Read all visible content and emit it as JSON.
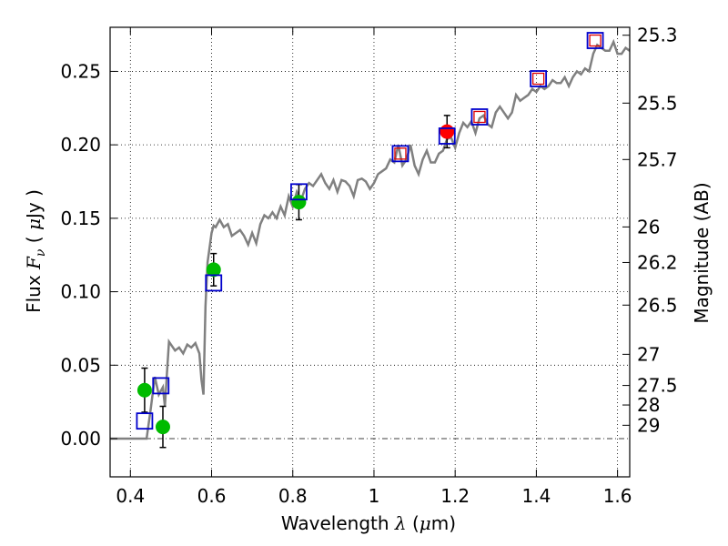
{
  "chart_data": {
    "type": "scatter",
    "xlabel": "Wavelength",
    "xlabel_symbol": "λ",
    "xlabel_unit_open": "(",
    "xlabel_unit_mu": "μ",
    "xlabel_unit_rest": "m)",
    "ylabel_prefix": "Flux",
    "ylabel_symbol": "F",
    "ylabel_sub": "ν",
    "ylabel_unit_open": "(",
    "ylabel_unit_mu": "μ",
    "ylabel_unit_rest": "Jy )",
    "y2label": "Magnitude (AB)",
    "xlim": [
      0.35,
      1.63
    ],
    "ylim": [
      -0.026,
      0.28
    ],
    "grid": true,
    "x_ticks": [
      0.4,
      0.6,
      0.8,
      1.0,
      1.2,
      1.4,
      1.6
    ],
    "x_tick_labels": [
      "0.4",
      "0.6",
      "0.8",
      "1",
      "1.2",
      "1.4",
      "1.6"
    ],
    "y_ticks": [
      0.0,
      0.05,
      0.1,
      0.15,
      0.2,
      0.25
    ],
    "y_tick_labels": [
      "0.00",
      "0.05",
      "0.10",
      "0.15",
      "0.20",
      "0.25"
    ],
    "mag_ticks": [
      {
        "label": "25.3",
        "flux": 0.2746
      },
      {
        "label": "25.5",
        "flux": 0.2284
      },
      {
        "label": "25.7",
        "flux": 0.19
      },
      {
        "label": "26",
        "flux": 0.1441
      },
      {
        "label": "26.2",
        "flux": 0.1199
      },
      {
        "label": "26.5",
        "flux": 0.0909
      },
      {
        "label": "27",
        "flux": 0.0574
      },
      {
        "label": "27.5",
        "flux": 0.0362
      },
      {
        "label": "28",
        "flux": 0.0229
      },
      {
        "label": "29",
        "flux": 0.0091
      }
    ],
    "model_spectrum": {
      "name": "SED model",
      "color": "#808080",
      "x": [
        0.35,
        0.4,
        0.42,
        0.43,
        0.44,
        0.45,
        0.46,
        0.47,
        0.48,
        0.485,
        0.49,
        0.495,
        0.5,
        0.51,
        0.52,
        0.53,
        0.54,
        0.55,
        0.56,
        0.57,
        0.575,
        0.58,
        0.585,
        0.59,
        0.595,
        0.6,
        0.605,
        0.61,
        0.62,
        0.63,
        0.64,
        0.65,
        0.66,
        0.67,
        0.68,
        0.69,
        0.7,
        0.71,
        0.72,
        0.73,
        0.74,
        0.75,
        0.76,
        0.77,
        0.78,
        0.79,
        0.8,
        0.81,
        0.82,
        0.83,
        0.84,
        0.85,
        0.86,
        0.87,
        0.88,
        0.89,
        0.9,
        0.91,
        0.92,
        0.93,
        0.94,
        0.95,
        0.96,
        0.97,
        0.98,
        0.99,
        1.0,
        1.01,
        1.02,
        1.03,
        1.04,
        1.05,
        1.06,
        1.07,
        1.08,
        1.09,
        1.1,
        1.11,
        1.12,
        1.13,
        1.14,
        1.15,
        1.16,
        1.17,
        1.18,
        1.19,
        1.2,
        1.21,
        1.22,
        1.23,
        1.24,
        1.25,
        1.26,
        1.27,
        1.28,
        1.29,
        1.3,
        1.31,
        1.32,
        1.33,
        1.34,
        1.35,
        1.36,
        1.37,
        1.38,
        1.39,
        1.4,
        1.41,
        1.42,
        1.43,
        1.44,
        1.45,
        1.46,
        1.47,
        1.48,
        1.49,
        1.5,
        1.51,
        1.52,
        1.53,
        1.54,
        1.55,
        1.56,
        1.57,
        1.58,
        1.59,
        1.6,
        1.61,
        1.62,
        1.63
      ],
      "y": [
        0.0,
        0.0,
        0.0,
        0.0,
        0.0,
        0.02,
        0.042,
        0.03,
        0.035,
        0.022,
        0.045,
        0.066,
        0.064,
        0.06,
        0.062,
        0.058,
        0.064,
        0.062,
        0.065,
        0.058,
        0.04,
        0.03,
        0.09,
        0.12,
        0.13,
        0.14,
        0.145,
        0.144,
        0.149,
        0.144,
        0.146,
        0.138,
        0.14,
        0.142,
        0.138,
        0.132,
        0.14,
        0.133,
        0.146,
        0.152,
        0.15,
        0.154,
        0.15,
        0.158,
        0.152,
        0.165,
        0.158,
        0.168,
        0.162,
        0.17,
        0.174,
        0.172,
        0.176,
        0.18,
        0.174,
        0.17,
        0.176,
        0.168,
        0.176,
        0.175,
        0.172,
        0.165,
        0.176,
        0.177,
        0.175,
        0.17,
        0.174,
        0.18,
        0.182,
        0.184,
        0.19,
        0.188,
        0.2,
        0.186,
        0.19,
        0.2,
        0.186,
        0.18,
        0.19,
        0.196,
        0.188,
        0.188,
        0.194,
        0.196,
        0.204,
        0.205,
        0.198,
        0.208,
        0.215,
        0.212,
        0.216,
        0.208,
        0.218,
        0.22,
        0.214,
        0.212,
        0.222,
        0.226,
        0.222,
        0.218,
        0.222,
        0.234,
        0.23,
        0.232,
        0.234,
        0.238,
        0.236,
        0.24,
        0.238,
        0.24,
        0.244,
        0.242,
        0.242,
        0.246,
        0.24,
        0.246,
        0.25,
        0.248,
        0.252,
        0.25,
        0.262,
        0.268,
        0.266,
        0.264,
        0.264,
        0.27,
        0.262,
        0.262,
        0.266,
        0.264
      ]
    },
    "series": [
      {
        "name": "observed photometry (green)",
        "marker": "circle",
        "color": "#00bb00",
        "points": [
          {
            "x": 0.435,
            "y": 0.033,
            "err": 0.015
          },
          {
            "x": 0.48,
            "y": 0.008,
            "err": 0.014
          },
          {
            "x": 0.605,
            "y": 0.115,
            "err": 0.011
          },
          {
            "x": 0.815,
            "y": 0.161,
            "err": 0.012
          }
        ]
      },
      {
        "name": "observed photometry (red)",
        "marker": "circle",
        "color": "#ff0000",
        "points": [
          {
            "x": 1.18,
            "y": 0.209,
            "err": 0.011
          }
        ]
      },
      {
        "name": "model photometry (blue)",
        "marker": "open-square",
        "color": "#0000cc",
        "points": [
          {
            "x": 0.435,
            "y": 0.012
          },
          {
            "x": 0.475,
            "y": 0.036
          },
          {
            "x": 0.605,
            "y": 0.106
          },
          {
            "x": 0.815,
            "y": 0.168
          },
          {
            "x": 1.065,
            "y": 0.194
          },
          {
            "x": 1.18,
            "y": 0.206
          },
          {
            "x": 1.26,
            "y": 0.219
          },
          {
            "x": 1.405,
            "y": 0.245
          },
          {
            "x": 1.545,
            "y": 0.271
          }
        ]
      },
      {
        "name": "model photometry (red)",
        "marker": "open-square",
        "color": "#dd0000",
        "points": [
          {
            "x": 1.065,
            "y": 0.194
          },
          {
            "x": 1.26,
            "y": 0.219
          },
          {
            "x": 1.405,
            "y": 0.245
          },
          {
            "x": 1.545,
            "y": 0.271
          }
        ]
      }
    ]
  }
}
